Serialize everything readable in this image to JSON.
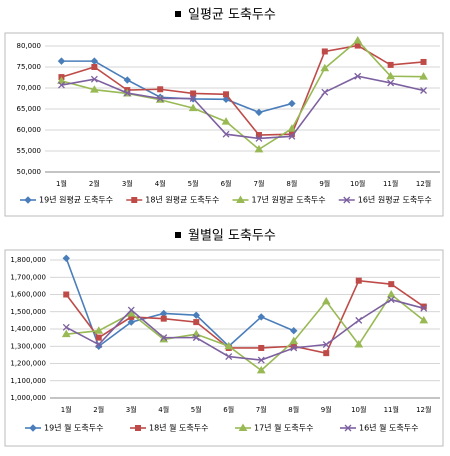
{
  "chart_data": [
    {
      "type": "line",
      "title": "일평균 도축두수",
      "categories": [
        "1월",
        "2월",
        "3월",
        "4월",
        "5월",
        "6월",
        "7월",
        "8월",
        "9월",
        "10월",
        "11월",
        "12월"
      ],
      "ylim": [
        50000,
        80000
      ],
      "yticks": [
        {
          "value": 50000,
          "label": "50,000"
        },
        {
          "value": 55000,
          "label": "55,000"
        },
        {
          "value": 60000,
          "label": "60,000"
        },
        {
          "value": 65000,
          "label": "65,000"
        },
        {
          "value": 70000,
          "label": "70,000"
        },
        {
          "value": 75000,
          "label": "75,000"
        },
        {
          "value": 80000,
          "label": "80,000"
        }
      ],
      "grid": true,
      "legend": "bottom",
      "series": [
        {
          "name": "19년 원평균 도축두수",
          "color": "#4a7ebb",
          "marker": "diamond",
          "values": [
            76400,
            76400,
            71900,
            67800,
            67400,
            67300,
            64200,
            66300,
            null,
            null,
            null,
            null
          ]
        },
        {
          "name": "18년 원평균 도축두수",
          "color": "#be4b48",
          "marker": "square",
          "values": [
            72600,
            75000,
            69500,
            69700,
            68700,
            68500,
            58800,
            59000,
            78700,
            80100,
            75500,
            76200
          ]
        },
        {
          "name": "17년 원평균 도축두수",
          "color": "#98b954",
          "marker": "triangle",
          "values": [
            71700,
            69600,
            68700,
            67200,
            65200,
            62000,
            55400,
            60300,
            74700,
            81300,
            72800,
            72700
          ]
        },
        {
          "name": "16년 원평균 도축두수",
          "color": "#7d60a0",
          "marker": "x",
          "values": [
            70700,
            72100,
            68800,
            67500,
            67500,
            59000,
            58000,
            58500,
            69000,
            72800,
            71200,
            69400
          ]
        }
      ]
    },
    {
      "type": "line",
      "title": "월별일 도축두수",
      "categories": [
        "1월",
        "2월",
        "3월",
        "4월",
        "5월",
        "6월",
        "7월",
        "8월",
        "9월",
        "10월",
        "11월",
        "12월"
      ],
      "ylim": [
        1000000,
        1800000
      ],
      "yticks": [
        {
          "value": 1000000,
          "label": "1,000,000"
        },
        {
          "value": 1100000,
          "label": "1,100,000"
        },
        {
          "value": 1200000,
          "label": "1,200,000"
        },
        {
          "value": 1300000,
          "label": "1,300,000"
        },
        {
          "value": 1400000,
          "label": "1,400,000"
        },
        {
          "value": 1500000,
          "label": "1,500,000"
        },
        {
          "value": 1600000,
          "label": "1,600,000"
        },
        {
          "value": 1700000,
          "label": "1,700,000"
        },
        {
          "value": 1800000,
          "label": "1,800,000"
        }
      ],
      "grid": true,
      "legend": "bottom",
      "series": [
        {
          "name": "19년 월 도축두수",
          "color": "#4a7ebb",
          "marker": "diamond",
          "values": [
            1810000,
            1300000,
            1440000,
            1490000,
            1480000,
            1300000,
            1470000,
            1390000,
            null,
            null,
            null,
            null
          ]
        },
        {
          "name": "18년 월 도축두수",
          "color": "#be4b48",
          "marker": "square",
          "values": [
            1600000,
            1350000,
            1470000,
            1460000,
            1440000,
            1290000,
            1290000,
            1300000,
            1260000,
            1680000,
            1660000,
            1530000
          ]
        },
        {
          "name": "17년 월 도축두수",
          "color": "#98b954",
          "marker": "triangle",
          "values": [
            1370000,
            1390000,
            1490000,
            1340000,
            1370000,
            1300000,
            1160000,
            1330000,
            1560000,
            1310000,
            1600000,
            1450000
          ]
        },
        {
          "name": "16년 월 도축두수",
          "color": "#7d60a0",
          "marker": "x",
          "values": [
            1410000,
            1310000,
            1510000,
            1350000,
            1350000,
            1240000,
            1220000,
            1290000,
            1310000,
            1450000,
            1570000,
            1520000
          ]
        }
      ]
    }
  ]
}
